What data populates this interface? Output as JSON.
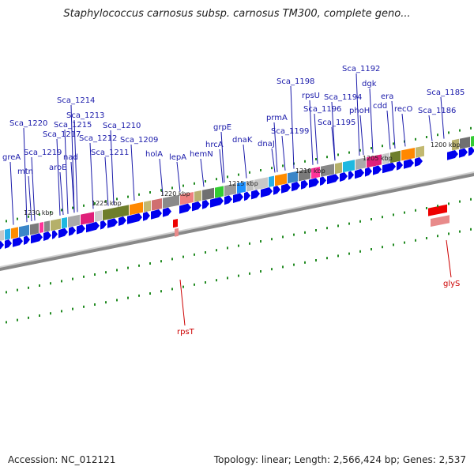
{
  "title": "Staphylococcus carnosus subsp. carnosus TM300, complete geno...",
  "footer": {
    "accession": "Accession: NC_012121",
    "summary": "Topology: linear; Length: 2,566,424 bp; Genes: 2,537"
  },
  "colors": {
    "gene_forward": "#0000ee",
    "gene_reverse": "#ee0000",
    "label_forward": "#1a1aaa",
    "label_reverse": "#cc0000",
    "tick": "#228b22",
    "axis": "#888888"
  },
  "ticks": [
    "1230 kbp",
    "1225 kbp",
    "1220 kbp",
    "1215 kbp",
    "1210 kbp",
    "1205 kbp",
    "1200 kbp"
  ],
  "genes_forward": [
    "greA",
    "mtn",
    "Sca_1220",
    "Sca_1219",
    "aroE",
    "Sca_1217",
    "nad",
    "Sca_1215",
    "Sca_1214",
    "Sca_1213",
    "Sca_1212",
    "Sca_1211",
    "Sca_1210",
    "Sca_1209",
    "holA",
    "lepA",
    "hemN",
    "hrcA",
    "grpE",
    "dnaK",
    "dnaJ",
    "prmA",
    "Sca_1199",
    "Sca_1198",
    "rpsU",
    "Sca_1196",
    "Sca_1195",
    "Sca_1194",
    "phoH",
    "Sca_1192",
    "dgk",
    "era",
    "cdd",
    "recO",
    "Sca_1186",
    "Sca_1185"
  ],
  "genes_reverse": [
    "rpsT",
    "glyS"
  ]
}
